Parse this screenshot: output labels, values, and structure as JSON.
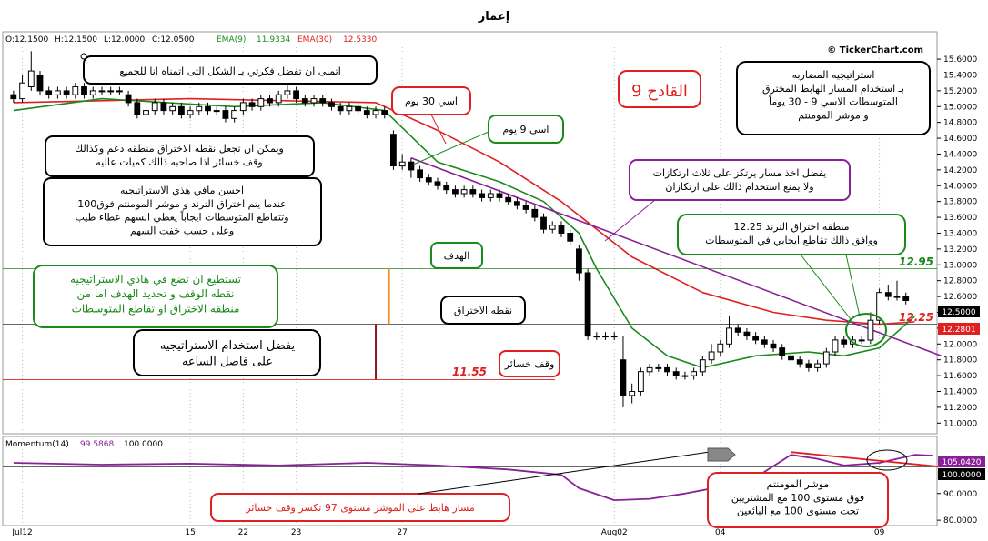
{
  "title": "إعمار",
  "watermark": "© TickerChart.com",
  "colors": {
    "ema9": "#1a8a1a",
    "ema30": "#e02020",
    "trendline": "#8a1f9a",
    "momentum": "#8a1f9a",
    "bull": "#ffffff",
    "bear": "#000000"
  },
  "price_header": {
    "open": "O:12.1500",
    "high": "H:12.1500",
    "low": "L:12.0000",
    "close": "C:12.0500",
    "ema9_label": "EMA(9)",
    "ema9_value": "11.9334",
    "ema30_label": "EMA(30)",
    "ema30_value": "12.5330"
  },
  "momentum_header": {
    "label": "Momentum(14)",
    "value1": "99.5868",
    "value2": "100.0000"
  },
  "price_levels": {
    "target": "12.95",
    "breakout": "12.25",
    "stop": "11.55"
  },
  "price_badges": {
    "last": "12.5000",
    "ema": "12.2801"
  },
  "momentum_badges": {
    "last": "105.0420",
    "ref": "100.0000"
  },
  "annotations": {
    "title_note": "القادح 9",
    "strategy_box": "استراتيجيه المضاربه\nبـ استخدام المسار الهابط المخترق\nالمتوسطات  الاسي 9 - 30 يوماً\nو موشر المومنتم",
    "wish_note": "اتمنى ان تفضل فكرتي بـ الشكل التى اتمناه انا للجميع",
    "support_note": "ويمكن ان تجعل نقطه الاختراق منطقه دعم وكذالك\nوقف خسائر اذا صاحبه ذالك كميات عاليه",
    "best_note": "احسن مافي هذي الاستراتيجيه\nعندما يتم اختراق الترند و موشر المومنتم فوق100\nوتتقاطع المتوسطات ايجاباً يعطي السهم عطاء طيب\nوعلى حسب خفت السهم",
    "ema30_callout": "اسي 30 يوم",
    "ema9_callout": "اسي 9 يوم",
    "trend_note": "يفضل اخذ مسار يرتكز على ثلاث ارتكازات\nولا يمنع استخدام ذالك على ارتكازان",
    "breakout_note": "منطقه اختراق الترند 12.25\nووافق ذالك تقاطع ايجابي في المتوسطات",
    "target_label": "الهدف",
    "green_note": "تستطيع ان تضع في هاذي الاستراتيجيه\nنقطه الوقف و تحديد الهدف اما من\nمنطقه الاختراق او تقاطع المتوسطات",
    "breakout_label": "نقطه الاختراق",
    "hour_note": "يفضل استخدام الاستراتيجيه\nعلى فاصل الساعه",
    "stop_label": "وقف خسائر",
    "mom_path_note": "مسار هابط على الموشر مستوى 97 تكسر وقف خسائر",
    "mom_note": "موشر المومنتم\nفوق  مستوى 100 مع المشتريين\nتحت  مستوى 100 مع  البائعين"
  },
  "chart_data": {
    "type": "candlestick",
    "title": "إعمار",
    "price_axis": {
      "ylim": [
        10.9,
        15.75
      ],
      "ticks": [
        "11.0000",
        "11.2000",
        "11.4000",
        "11.6000",
        "11.8000",
        "12.0000",
        "12.2000",
        "12.4000",
        "12.6000",
        "12.8000",
        "13.0000",
        "13.2000",
        "13.4000",
        "13.6000",
        "13.8000",
        "14.0000",
        "14.2000",
        "14.4000",
        "14.6000",
        "14.8000",
        "15.0000",
        "15.2000",
        "15.4000",
        "15.6000"
      ]
    },
    "momentum_axis": {
      "ylim": [
        78,
        110
      ],
      "ticks": [
        "80.0000",
        "90.0000"
      ]
    },
    "x_labels": [
      {
        "i": 1,
        "text": "Jul12"
      },
      {
        "i": 20,
        "text": "15"
      },
      {
        "i": 26,
        "text": "22"
      },
      {
        "i": 32,
        "text": "23"
      },
      {
        "i": 44,
        "text": "27"
      },
      {
        "i": 68,
        "text": "Aug02"
      },
      {
        "i": 80,
        "text": "04"
      },
      {
        "i": 98,
        "text": "09"
      }
    ],
    "candles": [
      {
        "o": 15.15,
        "c": 15.1,
        "h": 15.2,
        "l": 15.05
      },
      {
        "o": 15.1,
        "c": 15.3,
        "h": 15.4,
        "l": 15.05
      },
      {
        "o": 15.25,
        "c": 15.45,
        "h": 15.7,
        "l": 15.2
      },
      {
        "o": 15.4,
        "c": 15.2,
        "h": 15.45,
        "l": 15.15
      },
      {
        "o": 15.2,
        "c": 15.15,
        "h": 15.25,
        "l": 15.1
      },
      {
        "o": 15.15,
        "c": 15.2,
        "h": 15.25,
        "l": 15.1
      },
      {
        "o": 15.2,
        "c": 15.15,
        "h": 15.25,
        "l": 15.1
      },
      {
        "o": 15.15,
        "c": 15.25,
        "h": 15.3,
        "l": 15.1
      },
      {
        "o": 15.25,
        "c": 15.15,
        "h": 15.3,
        "l": 15.1
      },
      {
        "o": 15.15,
        "c": 15.2,
        "h": 15.25,
        "l": 15.1
      },
      {
        "o": 15.2,
        "c": 15.2,
        "h": 15.25,
        "l": 15.15
      },
      {
        "o": 15.2,
        "c": 15.2,
        "h": 15.25,
        "l": 15.15
      },
      {
        "o": 15.2,
        "c": 15.2,
        "h": 15.25,
        "l": 15.15
      },
      {
        "o": 15.15,
        "c": 15.05,
        "h": 15.2,
        "l": 15.0
      },
      {
        "o": 15.05,
        "c": 14.9,
        "h": 15.1,
        "l": 14.85
      },
      {
        "o": 14.9,
        "c": 14.95,
        "h": 15.0,
        "l": 14.85
      },
      {
        "o": 14.95,
        "c": 15.05,
        "h": 15.1,
        "l": 14.9
      },
      {
        "o": 15.05,
        "c": 14.95,
        "h": 15.1,
        "l": 14.9
      },
      {
        "o": 14.95,
        "c": 15.0,
        "h": 15.05,
        "l": 14.9
      },
      {
        "o": 15.0,
        "c": 14.9,
        "h": 15.05,
        "l": 14.85
      },
      {
        "o": 14.9,
        "c": 14.95,
        "h": 15.0,
        "l": 14.85
      },
      {
        "o": 14.95,
        "c": 15.0,
        "h": 15.05,
        "l": 14.9
      },
      {
        "o": 15.0,
        "c": 14.95,
        "h": 15.05,
        "l": 14.9
      },
      {
        "o": 14.95,
        "c": 14.95,
        "h": 15.0,
        "l": 14.9
      },
      {
        "o": 14.95,
        "c": 14.85,
        "h": 15.0,
        "l": 14.8
      },
      {
        "o": 14.85,
        "c": 14.95,
        "h": 15.0,
        "l": 14.8
      },
      {
        "o": 14.95,
        "c": 15.05,
        "h": 15.1,
        "l": 14.9
      },
      {
        "o": 15.05,
        "c": 15.0,
        "h": 15.1,
        "l": 14.95
      },
      {
        "o": 15.0,
        "c": 15.1,
        "h": 15.15,
        "l": 14.95
      },
      {
        "o": 15.1,
        "c": 15.05,
        "h": 15.15,
        "l": 15.0
      },
      {
        "o": 15.05,
        "c": 15.15,
        "h": 15.2,
        "l": 15.0
      },
      {
        "o": 15.15,
        "c": 15.2,
        "h": 15.3,
        "l": 15.1
      },
      {
        "o": 15.2,
        "c": 15.1,
        "h": 15.25,
        "l": 15.05
      },
      {
        "o": 15.1,
        "c": 15.05,
        "h": 15.15,
        "l": 15.0
      },
      {
        "o": 15.05,
        "c": 15.1,
        "h": 15.15,
        "l": 15.0
      },
      {
        "o": 15.1,
        "c": 15.05,
        "h": 15.15,
        "l": 15.0
      },
      {
        "o": 15.05,
        "c": 15.0,
        "h": 15.1,
        "l": 14.95
      },
      {
        "o": 15.0,
        "c": 14.95,
        "h": 15.05,
        "l": 14.9
      },
      {
        "o": 14.95,
        "c": 15.0,
        "h": 15.05,
        "l": 14.9
      },
      {
        "o": 15.0,
        "c": 14.95,
        "h": 15.05,
        "l": 14.9
      },
      {
        "o": 14.95,
        "c": 14.9,
        "h": 15.0,
        "l": 14.85
      },
      {
        "o": 14.9,
        "c": 14.95,
        "h": 15.0,
        "l": 14.85
      },
      {
        "o": 14.95,
        "c": 14.9,
        "h": 15.0,
        "l": 14.85
      },
      {
        "o": 14.65,
        "c": 14.25,
        "h": 14.7,
        "l": 14.2
      },
      {
        "o": 14.25,
        "c": 14.3,
        "h": 14.4,
        "l": 14.2
      },
      {
        "o": 14.3,
        "c": 14.2,
        "h": 14.35,
        "l": 14.1
      },
      {
        "o": 14.2,
        "c": 14.1,
        "h": 14.25,
        "l": 14.05
      },
      {
        "o": 14.1,
        "c": 14.05,
        "h": 14.15,
        "l": 14.0
      },
      {
        "o": 14.05,
        "c": 14.0,
        "h": 14.1,
        "l": 13.95
      },
      {
        "o": 14.0,
        "c": 13.95,
        "h": 14.05,
        "l": 13.9
      },
      {
        "o": 13.95,
        "c": 13.9,
        "h": 14.0,
        "l": 13.85
      },
      {
        "o": 13.9,
        "c": 13.95,
        "h": 14.0,
        "l": 13.85
      },
      {
        "o": 13.95,
        "c": 13.9,
        "h": 14.0,
        "l": 13.85
      },
      {
        "o": 13.9,
        "c": 13.85,
        "h": 13.95,
        "l": 13.8
      },
      {
        "o": 13.85,
        "c": 13.9,
        "h": 13.95,
        "l": 13.8
      },
      {
        "o": 13.9,
        "c": 13.85,
        "h": 13.95,
        "l": 13.8
      },
      {
        "o": 13.85,
        "c": 13.8,
        "h": 13.9,
        "l": 13.75
      },
      {
        "o": 13.8,
        "c": 13.75,
        "h": 13.85,
        "l": 13.7
      },
      {
        "o": 13.75,
        "c": 13.7,
        "h": 13.8,
        "l": 13.65
      },
      {
        "o": 13.7,
        "c": 13.6,
        "h": 13.75,
        "l": 13.55
      },
      {
        "o": 13.6,
        "c": 13.45,
        "h": 13.65,
        "l": 13.4
      },
      {
        "o": 13.45,
        "c": 13.5,
        "h": 13.55,
        "l": 13.4
      },
      {
        "o": 13.5,
        "c": 13.4,
        "h": 13.55,
        "l": 13.35
      },
      {
        "o": 13.4,
        "c": 13.3,
        "h": 13.45,
        "l": 13.25
      },
      {
        "o": 13.2,
        "c": 12.9,
        "h": 13.25,
        "l": 12.8
      },
      {
        "o": 12.9,
        "c": 12.1,
        "h": 12.95,
        "l": 12.05
      },
      {
        "o": 12.1,
        "c": 12.1,
        "h": 12.15,
        "l": 12.05
      },
      {
        "o": 12.1,
        "c": 12.1,
        "h": 12.15,
        "l": 12.05
      },
      {
        "o": 12.1,
        "c": 12.1,
        "h": 12.15,
        "l": 12.05
      },
      {
        "o": 11.8,
        "c": 11.35,
        "h": 12.1,
        "l": 11.2
      },
      {
        "o": 11.35,
        "c": 11.4,
        "h": 11.5,
        "l": 11.25
      },
      {
        "o": 11.4,
        "c": 11.65,
        "h": 11.7,
        "l": 11.35
      },
      {
        "o": 11.65,
        "c": 11.7,
        "h": 11.75,
        "l": 11.6
      },
      {
        "o": 11.7,
        "c": 11.7,
        "h": 11.75,
        "l": 11.65
      },
      {
        "o": 11.7,
        "c": 11.65,
        "h": 11.75,
        "l": 11.6
      },
      {
        "o": 11.65,
        "c": 11.6,
        "h": 11.7,
        "l": 11.55
      },
      {
        "o": 11.6,
        "c": 11.6,
        "h": 11.65,
        "l": 11.55
      },
      {
        "o": 11.6,
        "c": 11.65,
        "h": 11.7,
        "l": 11.55
      },
      {
        "o": 11.65,
        "c": 11.8,
        "h": 11.85,
        "l": 11.6
      },
      {
        "o": 11.8,
        "c": 11.9,
        "h": 12.0,
        "l": 11.75
      },
      {
        "o": 11.9,
        "c": 12.0,
        "h": 12.05,
        "l": 11.85
      },
      {
        "o": 12.0,
        "c": 12.2,
        "h": 12.35,
        "l": 11.95
      },
      {
        "o": 12.2,
        "c": 12.15,
        "h": 12.25,
        "l": 12.1
      },
      {
        "o": 12.15,
        "c": 12.1,
        "h": 12.2,
        "l": 12.05
      },
      {
        "o": 12.1,
        "c": 12.05,
        "h": 12.15,
        "l": 12.0
      },
      {
        "o": 12.05,
        "c": 12.0,
        "h": 12.1,
        "l": 11.95
      },
      {
        "o": 12.0,
        "c": 11.95,
        "h": 12.05,
        "l": 11.9
      },
      {
        "o": 11.95,
        "c": 11.85,
        "h": 12.0,
        "l": 11.8
      },
      {
        "o": 11.85,
        "c": 11.8,
        "h": 11.9,
        "l": 11.75
      },
      {
        "o": 11.8,
        "c": 11.75,
        "h": 11.85,
        "l": 11.7
      },
      {
        "o": 11.75,
        "c": 11.7,
        "h": 11.8,
        "l": 11.65
      },
      {
        "o": 11.7,
        "c": 11.75,
        "h": 11.8,
        "l": 11.65
      },
      {
        "o": 11.75,
        "c": 11.9,
        "h": 11.95,
        "l": 11.7
      },
      {
        "o": 11.9,
        "c": 12.05,
        "h": 12.1,
        "l": 11.85
      },
      {
        "o": 12.05,
        "c": 12.0,
        "h": 12.1,
        "l": 11.95
      },
      {
        "o": 12.0,
        "c": 12.05,
        "h": 12.1,
        "l": 11.95
      },
      {
        "o": 12.05,
        "c": 12.05,
        "h": 12.1,
        "l": 12.0
      },
      {
        "o": 12.05,
        "c": 12.3,
        "h": 12.4,
        "l": 12.0
      },
      {
        "o": 12.3,
        "c": 12.65,
        "h": 12.7,
        "l": 12.25
      },
      {
        "o": 12.65,
        "c": 12.6,
        "h": 12.75,
        "l": 12.55
      },
      {
        "o": 12.6,
        "c": 12.6,
        "h": 12.8,
        "l": 12.55
      },
      {
        "o": 12.6,
        "c": 12.55,
        "h": 12.65,
        "l": 12.5
      }
    ],
    "ema9": [
      [
        0,
        14.95
      ],
      [
        10,
        15.1
      ],
      [
        25,
        15.0
      ],
      [
        35,
        15.05
      ],
      [
        42,
        14.95
      ],
      [
        48,
        14.3
      ],
      [
        55,
        14.05
      ],
      [
        60,
        13.8
      ],
      [
        64,
        13.4
      ],
      [
        66,
        12.95
      ],
      [
        70,
        12.2
      ],
      [
        74,
        11.85
      ],
      [
        78,
        11.7
      ],
      [
        84,
        11.85
      ],
      [
        90,
        11.9
      ],
      [
        94,
        11.85
      ],
      [
        98,
        11.95
      ],
      [
        102,
        12.35
      ]
    ],
    "ema30": [
      [
        0,
        15.05
      ],
      [
        20,
        15.1
      ],
      [
        41,
        15.05
      ],
      [
        48,
        14.7
      ],
      [
        55,
        14.3
      ],
      [
        62,
        13.8
      ],
      [
        70,
        13.1
      ],
      [
        78,
        12.65
      ],
      [
        86,
        12.4
      ],
      [
        92,
        12.3
      ],
      [
        98,
        12.25
      ],
      [
        102,
        12.28
      ]
    ],
    "trendline": [
      [
        45,
        14.35
      ],
      [
        105,
        11.85
      ]
    ],
    "momentum": [
      [
        0,
        101.5
      ],
      [
        10,
        100.8
      ],
      [
        20,
        101.2
      ],
      [
        30,
        100.5
      ],
      [
        40,
        101.5
      ],
      [
        48,
        100.5
      ],
      [
        56,
        99.0
      ],
      [
        62,
        97.0
      ],
      [
        64,
        92.0
      ],
      [
        68,
        87.5
      ],
      [
        72,
        88.0
      ],
      [
        76,
        90.0
      ],
      [
        80,
        92.5
      ],
      [
        84,
        96.0
      ],
      [
        88,
        104.5
      ],
      [
        91,
        103.0
      ],
      [
        94,
        100.5
      ],
      [
        98,
        101.5
      ],
      [
        102,
        104.5
      ],
      [
        104,
        104.2
      ]
    ],
    "momentum_trendline": [
      [
        88,
        105.5
      ],
      [
        105,
        100.0
      ]
    ]
  }
}
